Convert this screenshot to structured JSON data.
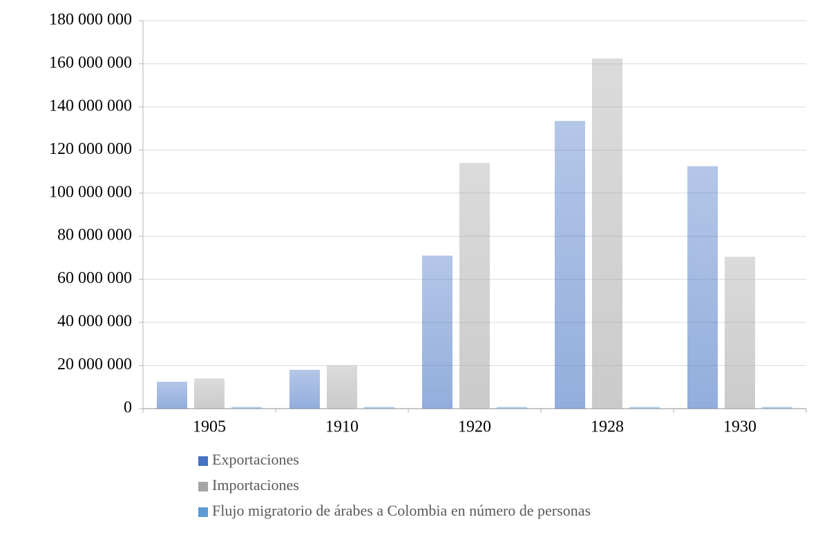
{
  "chart_data": {
    "type": "bar",
    "categories": [
      "1905",
      "1910",
      "1920",
      "1928",
      "1930"
    ],
    "series": [
      {
        "name": "Exportaciones",
        "color": "#4472c4",
        "values": [
          12500000,
          18000000,
          71000000,
          133500000,
          112500000
        ]
      },
      {
        "name": "Importaciones",
        "color": "#a5a5a5",
        "values": [
          14000000,
          20000000,
          114000000,
          162500000,
          70500000
        ]
      },
      {
        "name": "Flujo migratorio de árabes a Colombia en número de personas",
        "color": "#5b9bd5",
        "values": [
          800000,
          800000,
          800000,
          800000,
          800000
        ]
      }
    ],
    "ylim": [
      0,
      180000000
    ],
    "yticks": [
      {
        "value": 0,
        "label": "0"
      },
      {
        "value": 20000000,
        "label": "20 000 000"
      },
      {
        "value": 40000000,
        "label": "40 000 000"
      },
      {
        "value": 60000000,
        "label": "60 000 000"
      },
      {
        "value": 80000000,
        "label": "80 000 000"
      },
      {
        "value": 100000000,
        "label": "100 000 000"
      },
      {
        "value": 120000000,
        "label": "120 000 000"
      },
      {
        "value": 140000000,
        "label": "140 000 000"
      },
      {
        "value": 160000000,
        "label": "160 000 000"
      },
      {
        "value": 180000000,
        "label": "180 000 000"
      }
    ],
    "grid": true
  }
}
